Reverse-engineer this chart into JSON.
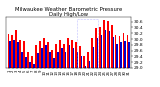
{
  "title": "Milwaukee Weather Barometric Pressure\nDaily High/Low",
  "title_fontsize": 3.8,
  "ylabel_fontsize": 3.2,
  "xlabel_fontsize": 2.8,
  "ylim": [
    29.0,
    30.75
  ],
  "yticks": [
    29.0,
    29.2,
    29.4,
    29.6,
    29.8,
    30.0,
    30.2,
    30.4,
    30.6
  ],
  "high_color": "#ff0000",
  "low_color": "#0000cc",
  "days": [
    "1",
    "2",
    "3",
    "4",
    "5",
    "6",
    "7",
    "8",
    "9",
    "10",
    "11",
    "12",
    "13",
    "14",
    "15",
    "16",
    "17",
    "18",
    "19",
    "20",
    "21",
    "22",
    "23",
    "24",
    "25",
    "26",
    "27",
    "28",
    "29",
    "30",
    "31"
  ],
  "highs": [
    30.18,
    30.15,
    30.3,
    29.95,
    29.92,
    29.55,
    29.42,
    29.78,
    29.92,
    30.05,
    29.88,
    29.62,
    29.82,
    29.98,
    29.82,
    30.05,
    29.95,
    29.88,
    29.75,
    29.4,
    29.55,
    30.02,
    30.38,
    30.42,
    30.65,
    30.62,
    30.48,
    30.15,
    30.12,
    30.22,
    30.15
  ],
  "lows": [
    29.92,
    29.95,
    29.88,
    29.55,
    29.38,
    29.22,
    29.12,
    29.52,
    29.68,
    29.78,
    29.55,
    29.35,
    29.55,
    29.68,
    29.55,
    29.78,
    29.68,
    29.55,
    29.42,
    29.08,
    29.25,
    29.72,
    30.05,
    30.15,
    30.32,
    30.28,
    30.08,
    29.82,
    29.88,
    29.92,
    29.88
  ],
  "background_color": "#ffffff",
  "yaxis_right": true,
  "bar_width": 0.42
}
